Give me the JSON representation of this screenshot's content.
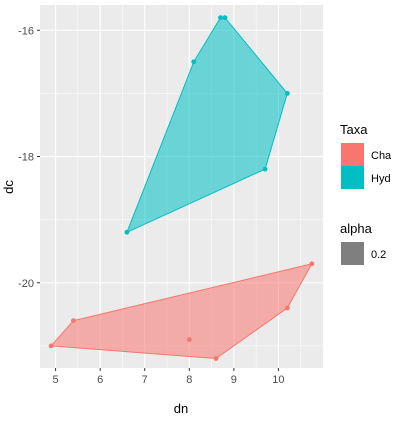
{
  "chart_data": {
    "type": "polygon-scatter",
    "xlabel": "dn",
    "ylabel": "dc",
    "xlim": [
      4.65,
      11.0
    ],
    "ylim": [
      -21.35,
      -15.6
    ],
    "x_ticks": [
      5,
      6,
      7,
      8,
      9,
      10
    ],
    "y_ticks": [
      -20,
      -18,
      -16
    ],
    "grid": true,
    "series": [
      {
        "name": "Cha",
        "color": "#F8766D",
        "points": [
          [
            4.9,
            -21.0
          ],
          [
            5.4,
            -20.6
          ],
          [
            8.0,
            -20.9
          ],
          [
            8.6,
            -21.2
          ],
          [
            10.2,
            -20.4
          ],
          [
            10.75,
            -19.7
          ]
        ],
        "hull": [
          [
            4.9,
            -21.0
          ],
          [
            8.6,
            -21.2
          ],
          [
            10.2,
            -20.4
          ],
          [
            10.75,
            -19.7
          ],
          [
            5.4,
            -20.6
          ]
        ]
      },
      {
        "name": "Hyd",
        "color": "#00BFC4",
        "points": [
          [
            6.6,
            -19.2
          ],
          [
            8.1,
            -16.5
          ],
          [
            8.7,
            -15.8
          ],
          [
            8.8,
            -15.8
          ],
          [
            9.7,
            -18.2
          ],
          [
            10.2,
            -17.0
          ]
        ],
        "hull": [
          [
            6.6,
            -19.2
          ],
          [
            9.7,
            -18.2
          ],
          [
            10.2,
            -17.0
          ],
          [
            8.8,
            -15.8
          ],
          [
            8.7,
            -15.8
          ],
          [
            8.1,
            -16.5
          ]
        ]
      }
    ],
    "legend": {
      "position": "right",
      "fill_title": "Taxa",
      "fill_items": [
        {
          "label": "Cha",
          "color": "#F8766D"
        },
        {
          "label": "Hyd",
          "color": "#00BFC4"
        }
      ],
      "alpha_title": "alpha",
      "alpha_items": [
        {
          "label": "0.2",
          "color": "#7f7f7f"
        }
      ]
    }
  }
}
